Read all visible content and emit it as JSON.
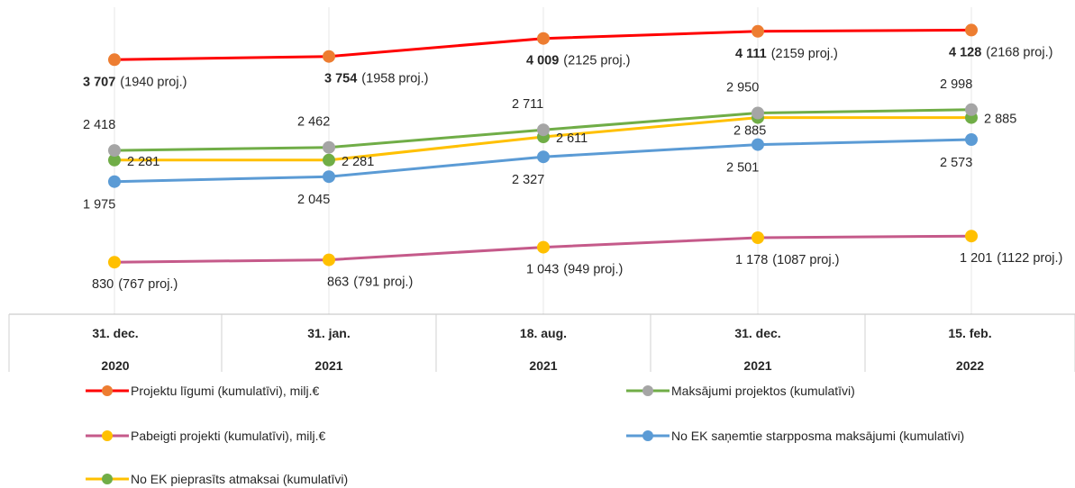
{
  "chart_data": {
    "type": "line",
    "categories": [
      {
        "line1": "31. dec.",
        "line2": "2020"
      },
      {
        "line1": "31. jan.",
        "line2": "2021"
      },
      {
        "line1": "18. aug.",
        "line2": "2021"
      },
      {
        "line1": "31. dec.",
        "line2": "2021"
      },
      {
        "line1": "15. feb.",
        "line2": "2022"
      }
    ],
    "ylim": [
      500,
      4300
    ],
    "grid": "vertical",
    "legend_position": "bottom",
    "series": [
      {
        "name": "Projektu līgumi (kumulatīvi), milj.€",
        "line_color": "#ff0000",
        "marker_color": "#ed7d31",
        "values": [
          3707,
          3754,
          4009,
          4111,
          4128
        ],
        "labels": [
          {
            "main": "3 707",
            "extra": "(1940 proj.)",
            "bold": true
          },
          {
            "main": "3 754",
            "extra": "(1958 proj.)",
            "bold": true
          },
          {
            "main": "4 009",
            "extra": "(2125 proj.)",
            "bold": true
          },
          {
            "main": "4 111",
            "extra": "(2159 proj.)",
            "bold": true
          },
          {
            "main": "4 128",
            "extra": "(2168 proj.)",
            "bold": true
          }
        ]
      },
      {
        "name": "Maksājumi projektos (kumulatīvi)",
        "line_color": "#70ad47",
        "marker_color": "#a5a5a5",
        "values": [
          2418,
          2462,
          2711,
          2950,
          2998
        ],
        "labels": [
          {
            "main": "2 418",
            "extra": ""
          },
          {
            "main": "2 462",
            "extra": ""
          },
          {
            "main": "2 711",
            "extra": ""
          },
          {
            "main": "2 950",
            "extra": ""
          },
          {
            "main": "2 998",
            "extra": ""
          }
        ]
      },
      {
        "name": "Pabeigti projekti (kumulatīvi), milj.€",
        "line_color": "#c55a8a",
        "marker_color": "#ffc000",
        "values": [
          830,
          863,
          1043,
          1178,
          1201
        ],
        "labels": [
          {
            "main": "830",
            "extra": "(767 proj.)"
          },
          {
            "main": "863",
            "extra": "(791 proj.)"
          },
          {
            "main": "1 043",
            "extra": "(949 proj.)"
          },
          {
            "main": "1 178",
            "extra": "(1087 proj.)"
          },
          {
            "main": "1 201",
            "extra": "(1122 proj.)"
          }
        ]
      },
      {
        "name": "No EK saņemtie starpposma maksājumi (kumulatīvi)",
        "line_color": "#5b9bd5",
        "marker_color": "#5b9bd5",
        "values": [
          1975,
          2045,
          2327,
          2501,
          2573
        ],
        "labels": [
          {
            "main": "1 975",
            "extra": ""
          },
          {
            "main": "2 045",
            "extra": ""
          },
          {
            "main": "2 327",
            "extra": ""
          },
          {
            "main": "2 501",
            "extra": ""
          },
          {
            "main": "2 573",
            "extra": ""
          }
        ]
      },
      {
        "name": "No EK pieprasīts atmaksai (kumulatīvi)",
        "line_color": "#ffc000",
        "marker_color": "#70ad47",
        "values": [
          2281,
          2281,
          2611,
          2885,
          2885
        ],
        "labels": [
          {
            "main": "2 281",
            "extra": ""
          },
          {
            "main": "2 281",
            "extra": ""
          },
          {
            "main": "2 611",
            "extra": ""
          },
          {
            "main": "2 885",
            "extra": ""
          },
          {
            "main": "2 885",
            "extra": ""
          }
        ]
      }
    ]
  }
}
